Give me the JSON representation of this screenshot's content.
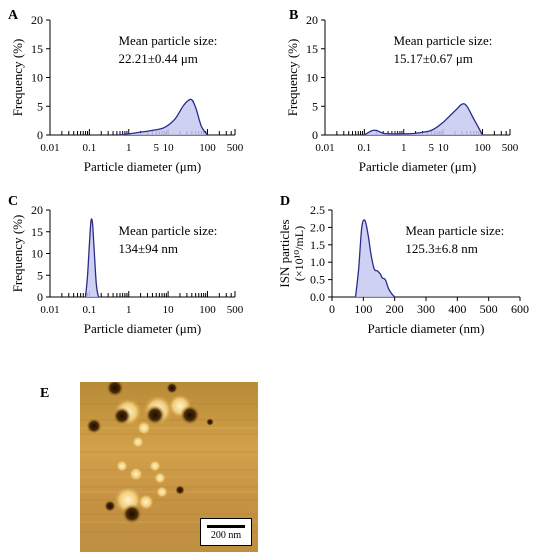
{
  "panels": [
    {
      "label": "A"
    },
    {
      "label": "B"
    },
    {
      "label": "C"
    },
    {
      "label": "D"
    },
    {
      "label": "E"
    }
  ],
  "chart_data": [
    {
      "type": "area",
      "panel": "A",
      "xscale": "log",
      "xlim": [
        0.01,
        500
      ],
      "ylim": [
        0,
        20
      ],
      "xticks": [
        "0.01",
        "0.1",
        "1",
        "5",
        "10",
        "100",
        "500"
      ],
      "yticks": [
        "0",
        "5",
        "10",
        "15",
        "20"
      ],
      "xlabel": "Particle diameter (μm)",
      "ylabel": "Frequency (%)",
      "annotation": [
        "Mean particle size:",
        "22.21±0.44 μm"
      ],
      "x": [
        0.6,
        1,
        2,
        4,
        8,
        15,
        25,
        38,
        50,
        70,
        100
      ],
      "y": [
        0,
        0.2,
        0.5,
        0.8,
        1.3,
        2.8,
        5.2,
        6.2,
        4.8,
        1.5,
        0
      ]
    },
    {
      "type": "area",
      "panel": "B",
      "xscale": "log",
      "xlim": [
        0.01,
        500
      ],
      "ylim": [
        0,
        20
      ],
      "xticks": [
        "0.01",
        "0.1",
        "1",
        "5",
        "10",
        "100",
        "500"
      ],
      "yticks": [
        "0",
        "5",
        "10",
        "15",
        "20"
      ],
      "xlabel": "Particle diameter (μm)",
      "ylabel": "Frequency (%)",
      "annotation": [
        "Mean particle size:",
        "15.17±0.67 μm"
      ],
      "x": [
        0.1,
        0.15,
        0.2,
        0.3,
        0.5,
        1,
        2,
        5,
        10,
        20,
        35,
        60,
        100
      ],
      "y": [
        0,
        0.7,
        0.8,
        0.3,
        0.2,
        0.2,
        0.3,
        0.8,
        2.2,
        4.2,
        5.4,
        2.8,
        0
      ]
    },
    {
      "type": "area",
      "panel": "C",
      "xscale": "log",
      "xlim": [
        0.01,
        500
      ],
      "ylim": [
        0,
        20
      ],
      "xticks": [
        "0.01",
        "0.1",
        "1",
        "10",
        "100",
        "500"
      ],
      "yticks": [
        "0",
        "5",
        "10",
        "15",
        "20"
      ],
      "xlabel": "Particle diameter (μm)",
      "ylabel": "Frequency (%)",
      "annotation": [
        "Mean particle size:",
        "134±94 nm"
      ],
      "x": [
        0.08,
        0.09,
        0.1,
        0.11,
        0.12,
        0.13,
        0.15,
        0.17
      ],
      "y": [
        0,
        5,
        12,
        17.5,
        17,
        12,
        3,
        0
      ]
    },
    {
      "type": "area",
      "panel": "D",
      "xscale": "linear",
      "xlim": [
        0,
        600
      ],
      "ylim": [
        0,
        2.5
      ],
      "xticks": [
        "0",
        "100",
        "200",
        "300",
        "400",
        "500",
        "600"
      ],
      "yticks": [
        "0.0",
        "0.5",
        "1.0",
        "1.5",
        "2.0",
        "2.5"
      ],
      "xlabel": "Particle diameter (nm)",
      "ylabel_line1": "ISN particles",
      "ylabel_line2": "(×10¹⁰/mL)",
      "annotation": [
        "Mean particle size:",
        "125.3±6.8 nm"
      ],
      "x": [
        75,
        85,
        95,
        105,
        115,
        125,
        135,
        145,
        155,
        160,
        170,
        180,
        190,
        200
      ],
      "y": [
        0,
        0.8,
        2.0,
        2.2,
        1.8,
        1.2,
        0.8,
        0.75,
        0.65,
        0.55,
        0.5,
        0.25,
        0.1,
        0
      ]
    }
  ],
  "afm_image": {
    "scale_label": "200 nm"
  },
  "colors": {
    "line": "#2b2b8c",
    "fill": "#c6c9ee",
    "afm_base": "#c9973b"
  }
}
